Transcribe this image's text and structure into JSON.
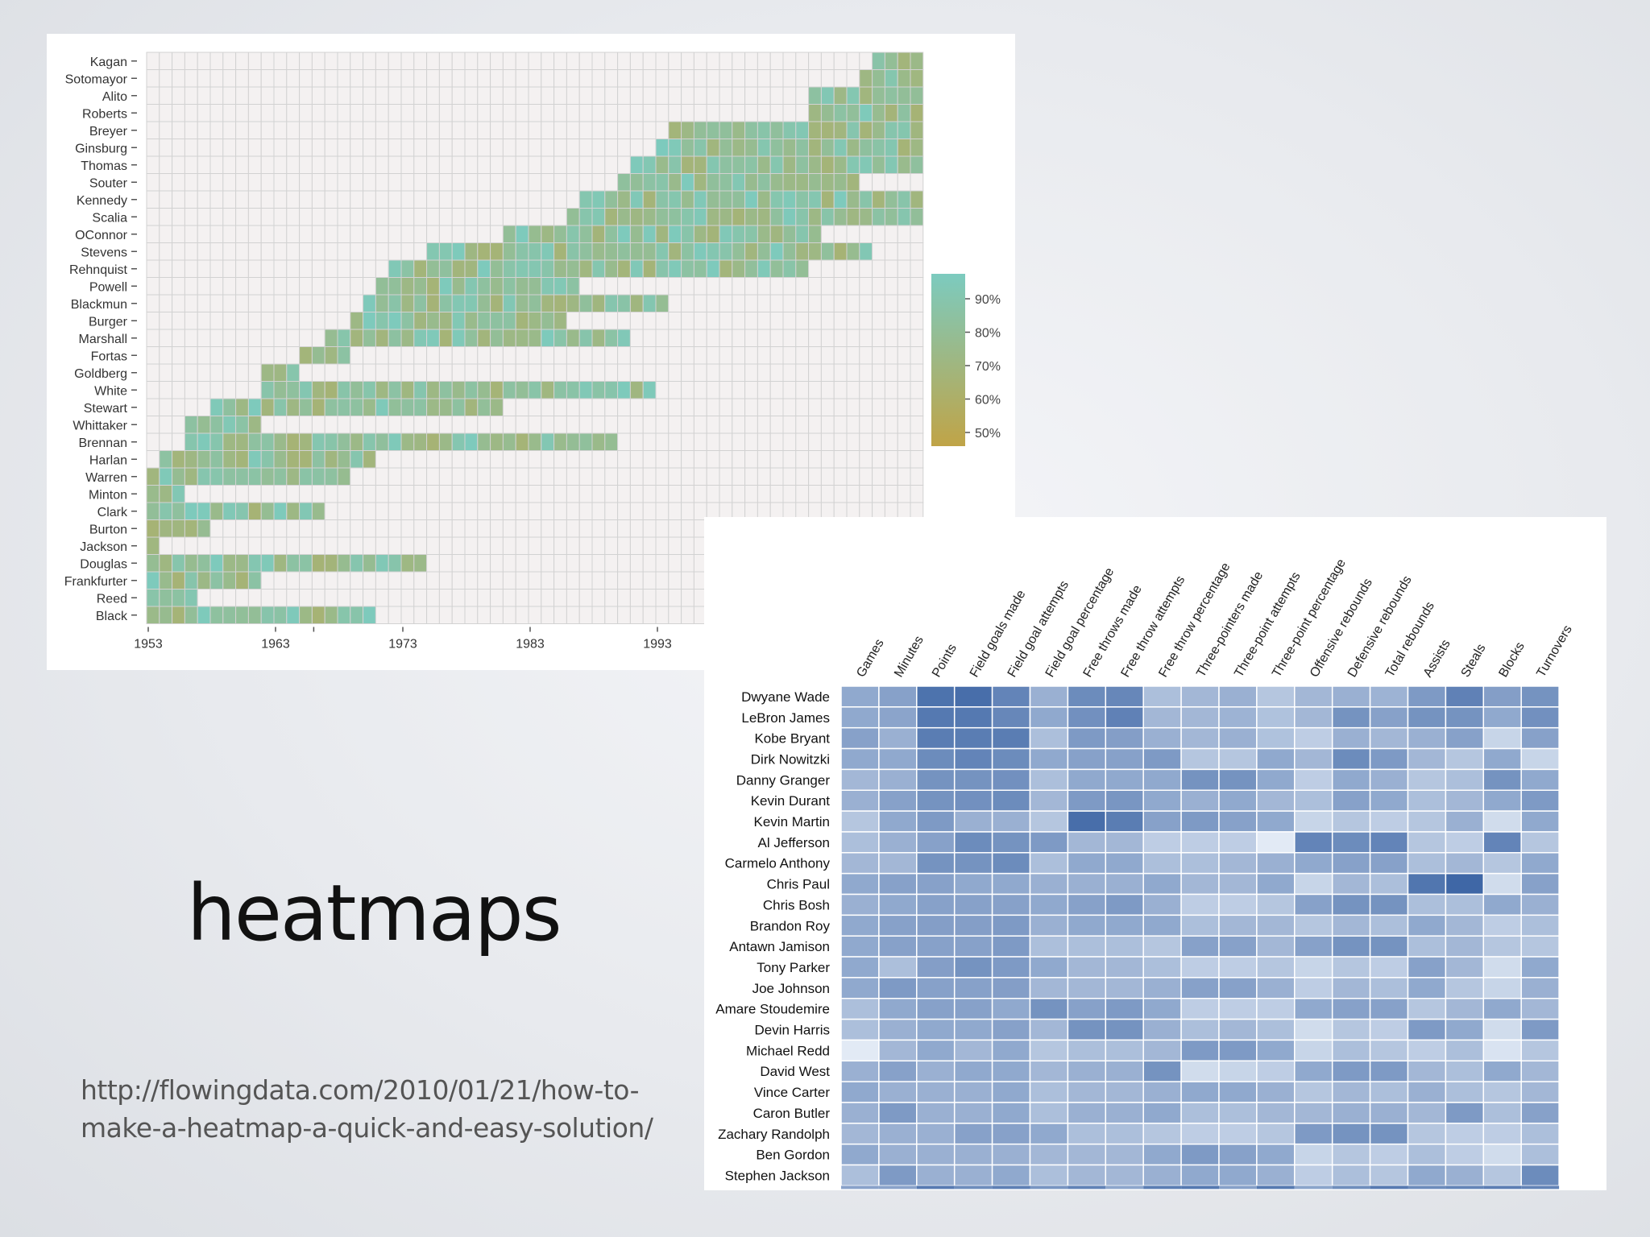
{
  "slide": {
    "title": "heatmaps",
    "source_lines": [
      "http://flowingdata.com/2010/01/21/how-to-",
      "make-a-heatmap-a-quick-and-easy-solution/"
    ]
  },
  "chart_data": [
    {
      "type": "heatmap",
      "title": "",
      "x_ticks": [
        "1953",
        "1963",
        "1973",
        "1983",
        "1993"
      ],
      "rows": [
        "Kagan",
        "Sotomayor",
        "Alito",
        "Roberts",
        "Breyer",
        "Ginsburg",
        "Thomas",
        "Souter",
        "Kennedy",
        "Scalia",
        "OConnor",
        "Stevens",
        "Rehnquist",
        "Powell",
        "Blackmun",
        "Burger",
        "Marshall",
        "Fortas",
        "Goldberg",
        "White",
        "Stewart",
        "Whittaker",
        "Brennan",
        "Harlan",
        "Warren",
        "Minton",
        "Clark",
        "Burton",
        "Jackson",
        "Douglas",
        "Frankfurter",
        "Reed",
        "Black"
      ],
      "terms": [
        [
          2010,
          2013
        ],
        [
          2009,
          2013
        ],
        [
          2005,
          2013
        ],
        [
          2005,
          2013
        ],
        [
          1994,
          2013
        ],
        [
          1993,
          2013
        ],
        [
          1991,
          2013
        ],
        [
          1990,
          2008
        ],
        [
          1987,
          2013
        ],
        [
          1986,
          2013
        ],
        [
          1981,
          2005
        ],
        [
          1975,
          2009
        ],
        [
          1972,
          2004
        ],
        [
          1971,
          1986
        ],
        [
          1970,
          1993
        ],
        [
          1969,
          1985
        ],
        [
          1967,
          1990
        ],
        [
          1965,
          1968
        ],
        [
          1962,
          1964
        ],
        [
          1962,
          1992
        ],
        [
          1958,
          1980
        ],
        [
          1956,
          1961
        ],
        [
          1956,
          1989
        ],
        [
          1954,
          1970
        ],
        [
          1953,
          1968
        ],
        [
          1953,
          1955
        ],
        [
          1953,
          1966
        ],
        [
          1953,
          1957
        ],
        [
          1953,
          1953
        ],
        [
          1953,
          1974
        ],
        [
          1953,
          1961
        ],
        [
          1953,
          1956
        ],
        [
          1953,
          1970
        ]
      ],
      "legend": {
        "ticks": [
          "90%",
          "80%",
          "70%",
          "60%",
          "50%"
        ],
        "low_color": "#c0a447",
        "high_color": "#7ccbbf",
        "placement": "right"
      },
      "colors": {
        "empty_cell": "#f4f1f1",
        "grid_line": "#d2d2d2"
      }
    },
    {
      "type": "heatmap",
      "title": "",
      "columns": [
        "Games",
        "Minutes",
        "Points",
        "Field goals made",
        "Field goal attempts",
        "Field goal percentage",
        "Free throws made",
        "Free throw attempts",
        "Free throw percentage",
        "Three-pointers made",
        "Three-point attempts",
        "Three-point percentage",
        "Offensive rebounds",
        "Defensive rebounds",
        "Total rebounds",
        "Assists",
        "Steals",
        "Blocks",
        "Turnovers"
      ],
      "rows": [
        "Dwyane Wade",
        "LeBron James",
        "Kobe Bryant",
        "Dirk Nowitzki",
        "Danny Granger",
        "Kevin Durant",
        "Kevin Martin",
        "Al Jefferson",
        "Carmelo Anthony",
        "Chris Paul",
        "Chris Bosh",
        "Brandon Roy",
        "Antawn Jamison",
        "Tony Parker",
        "Joe Johnson",
        "Amare Stoudemire",
        "Devin Harris",
        "Michael Redd",
        "David West",
        "Vince Carter",
        "Caron Butler",
        "Zachary Randolph",
        "Ben Gordon",
        "Stephen Jackson"
      ],
      "values": [
        [
          0.55,
          0.6,
          0.92,
          0.95,
          0.8,
          0.5,
          0.75,
          0.78,
          0.4,
          0.45,
          0.5,
          0.35,
          0.45,
          0.5,
          0.48,
          0.65,
          0.82,
          0.62,
          0.7
        ],
        [
          0.55,
          0.58,
          0.88,
          0.88,
          0.78,
          0.55,
          0.72,
          0.82,
          0.45,
          0.45,
          0.48,
          0.38,
          0.45,
          0.7,
          0.6,
          0.7,
          0.7,
          0.55,
          0.72
        ],
        [
          0.6,
          0.5,
          0.85,
          0.85,
          0.85,
          0.4,
          0.65,
          0.62,
          0.5,
          0.45,
          0.5,
          0.38,
          0.3,
          0.5,
          0.45,
          0.5,
          0.6,
          0.25,
          0.6
        ],
        [
          0.55,
          0.55,
          0.75,
          0.8,
          0.75,
          0.55,
          0.6,
          0.6,
          0.65,
          0.35,
          0.35,
          0.55,
          0.45,
          0.75,
          0.65,
          0.45,
          0.35,
          0.55,
          0.25
        ],
        [
          0.45,
          0.5,
          0.7,
          0.7,
          0.72,
          0.4,
          0.55,
          0.55,
          0.55,
          0.7,
          0.7,
          0.55,
          0.3,
          0.55,
          0.5,
          0.35,
          0.4,
          0.7,
          0.55
        ],
        [
          0.5,
          0.6,
          0.7,
          0.72,
          0.75,
          0.45,
          0.65,
          0.68,
          0.55,
          0.5,
          0.55,
          0.45,
          0.4,
          0.6,
          0.55,
          0.4,
          0.45,
          0.55,
          0.65
        ],
        [
          0.35,
          0.55,
          0.65,
          0.5,
          0.5,
          0.35,
          0.95,
          0.85,
          0.6,
          0.65,
          0.6,
          0.55,
          0.25,
          0.35,
          0.3,
          0.35,
          0.5,
          0.2,
          0.55
        ],
        [
          0.4,
          0.5,
          0.6,
          0.75,
          0.7,
          0.65,
          0.45,
          0.45,
          0.3,
          0.3,
          0.3,
          0.1,
          0.8,
          0.75,
          0.8,
          0.35,
          0.3,
          0.8,
          0.35
        ],
        [
          0.45,
          0.45,
          0.7,
          0.7,
          0.75,
          0.4,
          0.55,
          0.55,
          0.4,
          0.4,
          0.45,
          0.5,
          0.55,
          0.6,
          0.6,
          0.4,
          0.45,
          0.35,
          0.55
        ],
        [
          0.55,
          0.6,
          0.6,
          0.55,
          0.55,
          0.5,
          0.5,
          0.5,
          0.55,
          0.45,
          0.45,
          0.55,
          0.25,
          0.45,
          0.4,
          0.9,
          1.0,
          0.2,
          0.6
        ],
        [
          0.5,
          0.55,
          0.6,
          0.6,
          0.6,
          0.55,
          0.6,
          0.65,
          0.5,
          0.3,
          0.3,
          0.35,
          0.6,
          0.7,
          0.7,
          0.4,
          0.4,
          0.55,
          0.5
        ],
        [
          0.55,
          0.6,
          0.62,
          0.62,
          0.65,
          0.5,
          0.55,
          0.55,
          0.55,
          0.4,
          0.45,
          0.45,
          0.35,
          0.45,
          0.4,
          0.55,
          0.45,
          0.3,
          0.4
        ],
        [
          0.55,
          0.6,
          0.6,
          0.6,
          0.65,
          0.4,
          0.4,
          0.4,
          0.35,
          0.6,
          0.6,
          0.45,
          0.6,
          0.7,
          0.7,
          0.4,
          0.45,
          0.35,
          0.35
        ],
        [
          0.55,
          0.4,
          0.62,
          0.7,
          0.65,
          0.55,
          0.45,
          0.45,
          0.4,
          0.3,
          0.3,
          0.35,
          0.25,
          0.35,
          0.3,
          0.6,
          0.45,
          0.2,
          0.55
        ],
        [
          0.55,
          0.65,
          0.6,
          0.6,
          0.62,
          0.45,
          0.45,
          0.45,
          0.5,
          0.6,
          0.6,
          0.5,
          0.3,
          0.45,
          0.4,
          0.55,
          0.35,
          0.25,
          0.5
        ],
        [
          0.4,
          0.55,
          0.6,
          0.6,
          0.55,
          0.7,
          0.6,
          0.65,
          0.55,
          0.3,
          0.3,
          0.3,
          0.55,
          0.6,
          0.6,
          0.35,
          0.45,
          0.55,
          0.45
        ],
        [
          0.4,
          0.5,
          0.55,
          0.55,
          0.6,
          0.45,
          0.7,
          0.7,
          0.5,
          0.4,
          0.45,
          0.4,
          0.2,
          0.35,
          0.3,
          0.65,
          0.55,
          0.2,
          0.65
        ],
        [
          0.1,
          0.45,
          0.55,
          0.45,
          0.55,
          0.35,
          0.4,
          0.4,
          0.45,
          0.65,
          0.65,
          0.55,
          0.25,
          0.4,
          0.35,
          0.3,
          0.4,
          0.15,
          0.35
        ],
        [
          0.5,
          0.6,
          0.5,
          0.55,
          0.55,
          0.45,
          0.5,
          0.5,
          0.7,
          0.2,
          0.25,
          0.3,
          0.55,
          0.65,
          0.65,
          0.45,
          0.4,
          0.55,
          0.45
        ],
        [
          0.55,
          0.5,
          0.5,
          0.5,
          0.55,
          0.4,
          0.45,
          0.45,
          0.5,
          0.55,
          0.55,
          0.5,
          0.35,
          0.45,
          0.4,
          0.5,
          0.4,
          0.35,
          0.45
        ],
        [
          0.5,
          0.65,
          0.5,
          0.5,
          0.55,
          0.4,
          0.5,
          0.5,
          0.55,
          0.4,
          0.4,
          0.45,
          0.45,
          0.5,
          0.5,
          0.45,
          0.65,
          0.4,
          0.6
        ],
        [
          0.45,
          0.5,
          0.5,
          0.6,
          0.6,
          0.55,
          0.4,
          0.4,
          0.35,
          0.3,
          0.3,
          0.35,
          0.65,
          0.7,
          0.7,
          0.35,
          0.3,
          0.3,
          0.4
        ],
        [
          0.55,
          0.5,
          0.5,
          0.5,
          0.5,
          0.45,
          0.45,
          0.45,
          0.55,
          0.65,
          0.6,
          0.55,
          0.25,
          0.35,
          0.3,
          0.4,
          0.3,
          0.2,
          0.4
        ],
        [
          0.4,
          0.65,
          0.5,
          0.5,
          0.55,
          0.4,
          0.45,
          0.45,
          0.5,
          0.55,
          0.55,
          0.5,
          0.3,
          0.4,
          0.35,
          0.55,
          0.5,
          0.35,
          0.75
        ]
      ],
      "colors": {
        "low": "#f4f9fe",
        "high": "#3f67a6",
        "grid_line": "#ffffff"
      }
    }
  ]
}
